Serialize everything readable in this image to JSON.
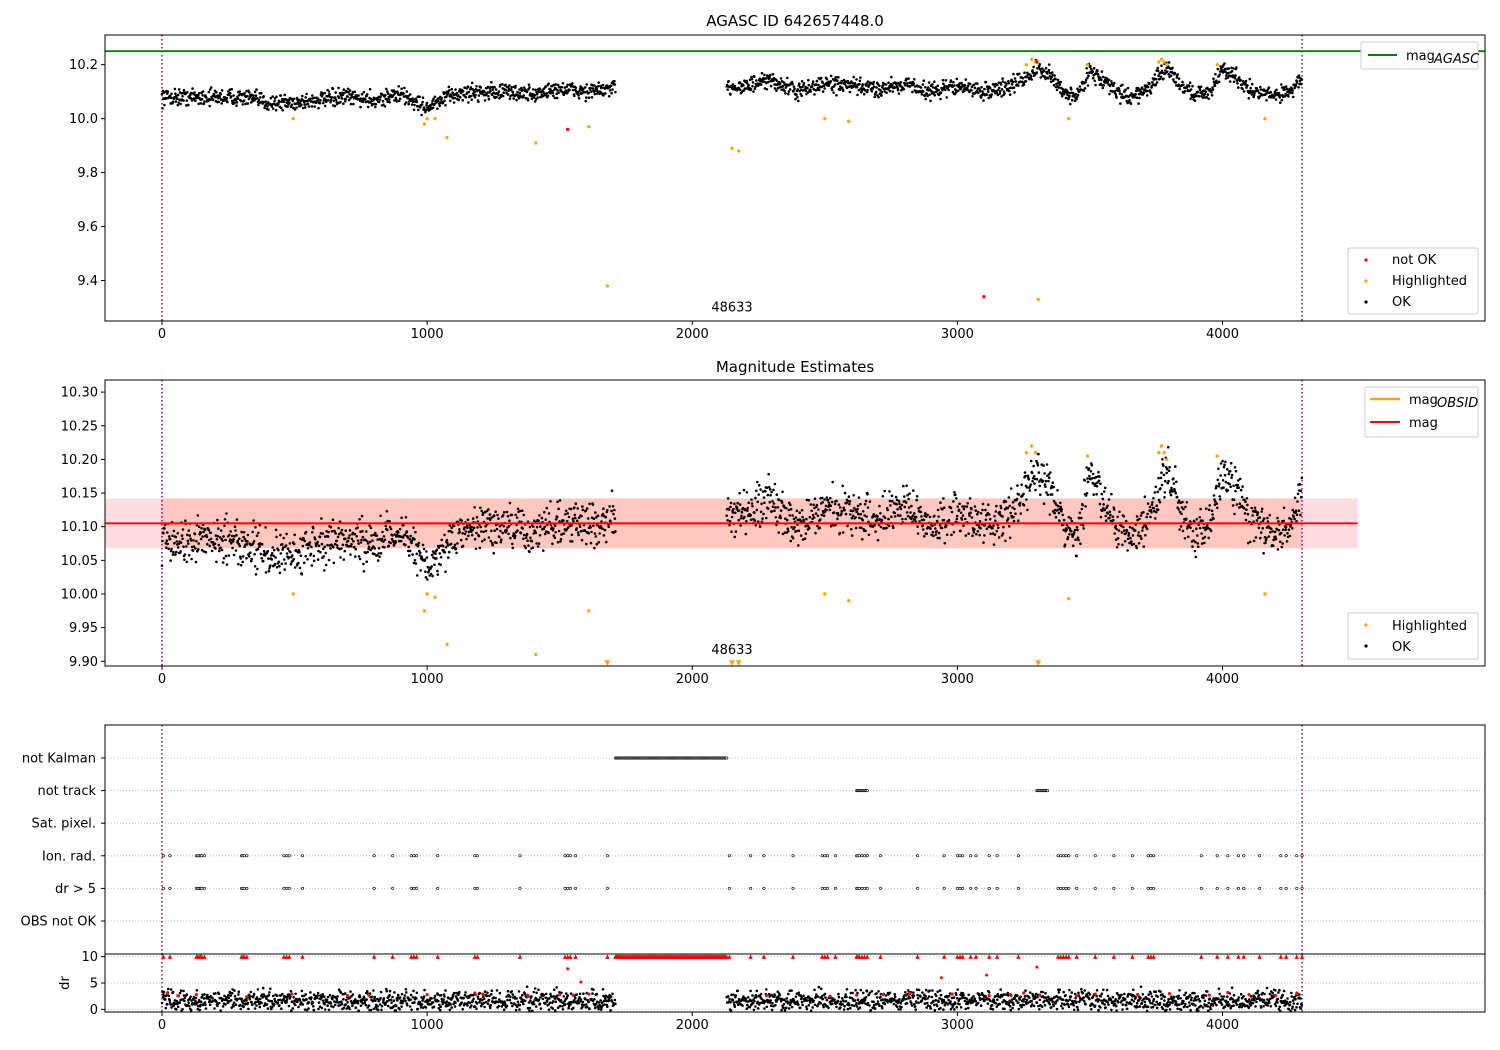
{
  "chart_data": [
    {
      "type": "scatter",
      "title": "AGASC ID 642657448.0",
      "xlim": [
        -215,
        4990
      ],
      "ylim": [
        9.25,
        10.31
      ],
      "xticks": [
        0,
        1000,
        2000,
        3000,
        4000
      ],
      "yticks": [
        9.4,
        9.6,
        9.8,
        10.0,
        10.2
      ],
      "obsid_markers": [
        0,
        4300
      ],
      "obsid_label": {
        "text": "48633",
        "x": 2150,
        "y": 9.27
      },
      "mag_agasc": 10.25,
      "legend_line": {
        "label": "mag",
        "subscript": "AGASC",
        "color": "#008000"
      },
      "legend_points": [
        {
          "label": "not OK",
          "color": "#ff0000"
        },
        {
          "label": "Highlighted",
          "color": "#ffa500"
        },
        {
          "label": "OK",
          "color": "#000000"
        }
      ],
      "series": [
        {
          "name": "OK",
          "color": "#000000",
          "segments": [
            {
              "x": [
                0,
                100,
                200,
                300,
                400,
                500,
                600,
                700,
                800,
                900,
                1000,
                1100,
                1200,
                1300,
                1400,
                1500,
                1600,
                1710
              ],
              "y": [
                10.08,
                10.08,
                10.08,
                10.08,
                10.06,
                10.06,
                10.07,
                10.08,
                10.07,
                10.09,
                10.04,
                10.09,
                10.1,
                10.1,
                10.09,
                10.11,
                10.1,
                10.11
              ]
            },
            {
              "x": [
                2130,
                2200,
                2300,
                2400,
                2500,
                2600,
                2700,
                2800,
                2900,
                3000,
                3100,
                3200,
                3250,
                3300,
                3350,
                3400,
                3450,
                3500,
                3550,
                3600,
                3650,
                3700,
                3750,
                3790,
                3850,
                3900,
                3950,
                4000,
                4050,
                4100,
                4150,
                4200,
                4250,
                4300
              ],
              "y": [
                10.12,
                10.12,
                10.14,
                10.1,
                10.13,
                10.12,
                10.11,
                10.13,
                10.1,
                10.12,
                10.1,
                10.12,
                10.15,
                10.18,
                10.16,
                10.1,
                10.08,
                10.18,
                10.14,
                10.1,
                10.08,
                10.1,
                10.14,
                10.19,
                10.12,
                10.09,
                10.1,
                10.18,
                10.16,
                10.11,
                10.09,
                10.09,
                10.1,
                10.15
              ]
            }
          ]
        },
        {
          "name": "Highlighted",
          "color": "#ffa500",
          "x": [
            495,
            990,
            1000,
            1030,
            1075,
            1410,
            1610,
            1680,
            2150,
            2175,
            2500,
            2590,
            3260,
            3280,
            3295,
            3305,
            3420,
            3490,
            3760,
            3770,
            3780,
            3790,
            3980,
            4160
          ],
          "y": [
            10.0,
            9.98,
            10.0,
            10.0,
            9.93,
            9.91,
            9.97,
            9.38,
            9.89,
            9.88,
            10.0,
            9.99,
            10.2,
            10.22,
            10.21,
            9.33,
            10.0,
            10.2,
            10.21,
            10.22,
            10.21,
            10.2,
            10.2,
            10.0
          ]
        },
        {
          "name": "not OK",
          "color": "#ff0000",
          "x": [
            1530,
            3100,
            3300
          ],
          "y": [
            9.96,
            9.34,
            10.21
          ]
        }
      ]
    },
    {
      "type": "scatter",
      "title": "Magnitude Estimates",
      "xlim": [
        -215,
        4990
      ],
      "ylim": [
        9.893,
        10.318
      ],
      "xticks": [
        0,
        1000,
        2000,
        3000,
        4000
      ],
      "yticks": [
        9.9,
        9.95,
        10.0,
        10.05,
        10.1,
        10.15,
        10.2,
        10.25,
        10.3
      ],
      "ytick_labels": [
        "9.90",
        "9.95",
        "10.00",
        "10.05",
        "10.10",
        "10.15",
        "10.20",
        "10.25",
        "10.30"
      ],
      "obsid_markers": [
        0,
        4300
      ],
      "obsid_label": {
        "text": "48633",
        "x": 2150,
        "y": 9.905
      },
      "mag_line": {
        "value": 10.105,
        "x_range": [
          -215,
          4510
        ],
        "color": "#ff0000"
      },
      "mag_band": {
        "low": 10.068,
        "high": 10.142,
        "x_range": [
          -215,
          4510
        ],
        "color": "#ffc0cb"
      },
      "mag_obsid": {
        "value": 10.105,
        "low": 10.068,
        "high": 10.142,
        "x_range": [
          -5,
          4300
        ],
        "color": "#ffa500"
      },
      "legend_lines": [
        {
          "label": "mag",
          "subscript": "OBSID",
          "color": "#ffa500"
        },
        {
          "label": "mag",
          "subscript": "",
          "color": "#ff0000"
        }
      ],
      "legend_points": [
        {
          "label": "Highlighted",
          "color": "#ffa500"
        },
        {
          "label": "OK",
          "color": "#000000"
        }
      ],
      "series": [
        {
          "name": "OK",
          "color": "#000000",
          "segments": [
            {
              "x": [
                0,
                100,
                200,
                300,
                400,
                500,
                600,
                700,
                800,
                900,
                1000,
                1100,
                1200,
                1300,
                1400,
                1500,
                1600,
                1710
              ],
              "y": [
                10.08,
                10.08,
                10.08,
                10.08,
                10.06,
                10.06,
                10.07,
                10.08,
                10.07,
                10.09,
                10.04,
                10.09,
                10.1,
                10.1,
                10.09,
                10.11,
                10.1,
                10.11
              ]
            },
            {
              "x": [
                2130,
                2200,
                2300,
                2400,
                2500,
                2600,
                2700,
                2800,
                2900,
                3000,
                3100,
                3200,
                3250,
                3300,
                3350,
                3400,
                3450,
                3500,
                3550,
                3600,
                3650,
                3700,
                3750,
                3790,
                3850,
                3900,
                3950,
                4000,
                4050,
                4100,
                4150,
                4200,
                4250,
                4300
              ],
              "y": [
                10.12,
                10.12,
                10.14,
                10.1,
                10.13,
                10.12,
                10.11,
                10.13,
                10.1,
                10.12,
                10.1,
                10.12,
                10.15,
                10.18,
                10.16,
                10.1,
                10.08,
                10.18,
                10.14,
                10.1,
                10.08,
                10.1,
                10.14,
                10.19,
                10.12,
                10.09,
                10.1,
                10.18,
                10.16,
                10.11,
                10.09,
                10.09,
                10.1,
                10.15
              ]
            }
          ]
        },
        {
          "name": "Highlighted",
          "color": "#ffa500",
          "x": [
            495,
            990,
            1000,
            1030,
            1075,
            1410,
            1610,
            3260,
            3280,
            3295,
            3420,
            3490,
            3760,
            3770,
            3780,
            3790,
            3980,
            2500,
            2590,
            4160
          ],
          "y": [
            10.0,
            9.975,
            10.0,
            9.995,
            9.925,
            9.91,
            9.975,
            10.21,
            10.22,
            10.21,
            9.993,
            10.205,
            10.21,
            10.22,
            10.21,
            10.2,
            10.205,
            10.0,
            9.99,
            10.0
          ]
        },
        {
          "name": "Highlighted (below range)",
          "color": "#ffa500",
          "marker": "triangle-down",
          "x": [
            1680,
            2150,
            2175,
            3305
          ],
          "y": [
            9.897,
            9.897,
            9.897,
            9.897
          ]
        }
      ]
    },
    {
      "type": "scatter",
      "title": "",
      "xlim": [
        -215,
        4990
      ],
      "categories": [
        "not Kalman",
        "not track",
        "Sat. pixel.",
        "Ion. rad.",
        "dr > 5",
        "OBS not OK"
      ],
      "obsid_markers": [
        0,
        4300
      ],
      "flags": {
        "not Kalman": [
          [
            1710,
            2130
          ]
        ],
        "not track": [
          [
            2620,
            2660
          ],
          [
            3300,
            3340
          ]
        ],
        "Sat. pixel.": [],
        "Ion. rad.": [
          5,
          30,
          130,
          135,
          140,
          145,
          150,
          160,
          300,
          305,
          310,
          320,
          460,
          470,
          480,
          530,
          800,
          870,
          940,
          950,
          960,
          1040,
          1180,
          1190,
          1350,
          1520,
          1530,
          1540,
          1560,
          1680,
          2140,
          2220,
          2270,
          2380,
          2490,
          2500,
          2510,
          2540,
          2620,
          2625,
          2630,
          2640,
          2650,
          2660,
          2710,
          2850,
          2950,
          3000,
          3010,
          3020,
          3050,
          3070,
          3120,
          3150,
          3230,
          3380,
          3390,
          3400,
          3410,
          3420,
          3450,
          3520,
          3590,
          3660,
          3720,
          3730,
          3740,
          3920,
          3980,
          4020,
          4060,
          4080,
          4140,
          4220,
          4240,
          4280,
          4300
        ],
        "dr > 5": [
          5,
          30,
          130,
          135,
          140,
          145,
          150,
          160,
          300,
          305,
          310,
          320,
          460,
          470,
          480,
          530,
          800,
          870,
          940,
          950,
          960,
          1040,
          1180,
          1190,
          1350,
          1520,
          1530,
          1540,
          1560,
          1680,
          2140,
          2220,
          2270,
          2380,
          2490,
          2500,
          2510,
          2540,
          2620,
          2625,
          2630,
          2640,
          2650,
          2660,
          2710,
          2850,
          2950,
          3000,
          3010,
          3020,
          3050,
          3070,
          3120,
          3150,
          3230,
          3380,
          3390,
          3400,
          3410,
          3420,
          3450,
          3520,
          3590,
          3660,
          3720,
          3730,
          3740,
          3920,
          3980,
          4020,
          4060,
          4080,
          4140,
          4220,
          4240,
          4280,
          4300
        ],
        "OBS not OK": []
      }
    },
    {
      "type": "scatter",
      "title": "",
      "ylabel": "dr",
      "xlim": [
        -215,
        4990
      ],
      "ylim": [
        -0.5,
        10.5
      ],
      "xticks": [
        0,
        1000,
        2000,
        3000,
        4000
      ],
      "yticks": [
        0,
        5,
        10
      ],
      "obsid_markers": [
        0,
        4300
      ],
      "series": [
        {
          "name": "OK",
          "color": "#000000",
          "segments": [
            {
              "x": [
                0,
                200,
                400,
                600,
                800,
                1000,
                1200,
                1400,
                1600,
                1710
              ],
              "y": [
                1.6,
                1.7,
                1.6,
                1.7,
                1.6,
                1.7,
                1.6,
                1.7,
                1.6,
                1.7
              ]
            },
            {
              "x": [
                2130,
                2400,
                2700,
                3000,
                3300,
                3600,
                3900,
                4200,
                4300
              ],
              "y": [
                1.6,
                1.7,
                1.6,
                1.7,
                1.6,
                1.7,
                1.6,
                1.7,
                1.6
              ]
            }
          ]
        },
        {
          "name": "not OK (low)",
          "color": "#ff0000",
          "x": [
            20,
            60,
            130,
            320,
            490,
            700,
            780,
            1000,
            1180,
            1210,
            1380,
            1500,
            1550,
            1610,
            2280,
            2520,
            2620,
            2720,
            2820,
            2980,
            3120,
            3200,
            3250,
            3310,
            3450,
            3520,
            3680,
            3800,
            3950,
            4020,
            4100,
            4200,
            4280
          ],
          "y": [
            3.0,
            2.6,
            2.8,
            2.4,
            2.9,
            2.6,
            2.7,
            2.8,
            3.1,
            2.9,
            2.6,
            2.8,
            2.7,
            2.9,
            2.6,
            2.5,
            2.7,
            2.8,
            3.0,
            2.9,
            2.6,
            2.8,
            3.1,
            2.7,
            2.6,
            2.9,
            2.8,
            3.0,
            2.7,
            3.2,
            2.8,
            2.6,
            3.0
          ]
        },
        {
          "name": "not OK (mid)",
          "color": "#ff0000",
          "x": [
            1530,
            1580,
            2940,
            3110,
            3300
          ],
          "y": [
            7.7,
            5.2,
            6.0,
            6.5,
            8.0
          ]
        },
        {
          "name": "not OK (10)",
          "color": "#ff0000",
          "marker": "triangle-up",
          "x_from_flags": true,
          "y": 10
        }
      ]
    }
  ]
}
